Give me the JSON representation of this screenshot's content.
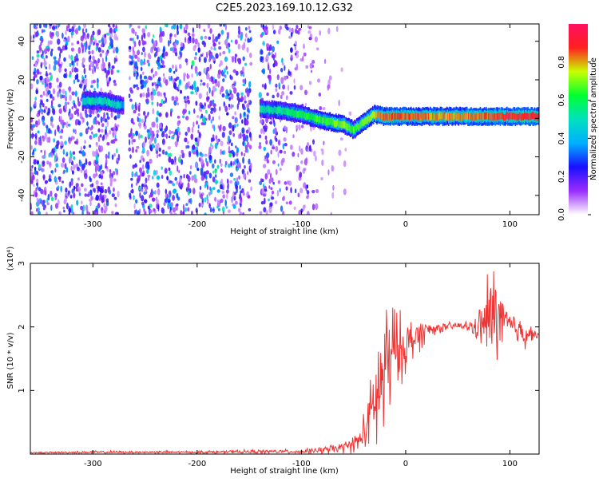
{
  "figure_title": "C2E5.2023.169.10.12.G32",
  "chart_data": [
    {
      "type": "heatmap",
      "xlabel": "Height of straight line (km)",
      "ylabel": "Frequency (Hz)",
      "xlim": [
        -360,
        128
      ],
      "ylim": [
        -50,
        49
      ],
      "xticks": [
        -300,
        -200,
        -100,
        0,
        100
      ],
      "xtick_labels": [
        "-300",
        "-200",
        "-100",
        "0",
        "100"
      ],
      "yticks": [
        -40,
        -20,
        0,
        20,
        40
      ],
      "ytick_labels": [
        "-40",
        "-20",
        "0",
        "20",
        "40"
      ],
      "grid": false,
      "colorbar": {
        "label": "Normalized spectral amplitude",
        "range": [
          0.0,
          1.0
        ],
        "ticks": [
          0.0,
          0.2,
          0.4,
          0.6,
          0.8
        ],
        "tick_labels": [
          "0.0",
          "0.2",
          "0.4",
          "0.6",
          "0.8"
        ],
        "colors": [
          "#ffffff",
          "#9a2cff",
          "#1a10ff",
          "#00b0ff",
          "#00e0c0",
          "#00ff30",
          "#c8ff00",
          "#ff2020",
          "#ff1060"
        ]
      },
      "noise": {
        "x_range": [
          -360,
          -70
        ],
        "level": 0.18,
        "gap_x": [
          [
            -275,
            -265
          ],
          [
            -148,
            -140
          ]
        ]
      },
      "trace": {
        "name_visible": false,
        "x": [
          -310,
          -290,
          -275,
          -265,
          -140,
          -120,
          -100,
          -80,
          -60,
          -50,
          -40,
          -30,
          -20,
          0,
          40,
          80,
          110,
          128
        ],
        "frequency": [
          9,
          9,
          7,
          6,
          5,
          4,
          2,
          -1,
          -3,
          -6,
          -2,
          2,
          1,
          1,
          1,
          1,
          1,
          1
        ],
        "amplitude": [
          0.5,
          0.5,
          0.5,
          0.0,
          0.5,
          0.55,
          0.6,
          0.65,
          0.7,
          0.65,
          0.7,
          0.75,
          0.85,
          0.85,
          0.8,
          0.85,
          0.9,
          0.9
        ]
      }
    },
    {
      "type": "line",
      "xlabel": "Height of straight line (km)",
      "ylabel": "SNR (10 * v/v)",
      "y_multiplier": "(x10⁴)",
      "xlim": [
        -360,
        128
      ],
      "ylim": [
        0,
        3
      ],
      "xticks": [
        -300,
        -200,
        -100,
        0,
        100
      ],
      "xtick_labels": [
        "-300",
        "-200",
        "-100",
        "0",
        "100"
      ],
      "yticks": [
        1,
        2,
        3
      ],
      "ytick_labels": [
        "1",
        "2",
        "3"
      ],
      "grid": false,
      "series": [
        {
          "color": "#ee3333",
          "x": [
            -360,
            -300,
            -200,
            -130,
            -100,
            -80,
            -60,
            -45,
            -40,
            -35,
            -30,
            -25,
            -20,
            -15,
            -10,
            -5,
            0,
            10,
            20,
            30,
            40,
            50,
            60,
            70,
            75,
            80,
            85,
            90,
            95,
            100,
            105,
            110,
            115,
            120,
            128
          ],
          "y": [
            0.02,
            0.03,
            0.03,
            0.04,
            0.04,
            0.06,
            0.1,
            0.2,
            0.35,
            0.5,
            0.8,
            1.0,
            1.3,
            1.5,
            1.6,
            1.65,
            1.7,
            1.85,
            1.95,
            1.98,
            2.0,
            2.02,
            2.0,
            2.0,
            2.05,
            2.1,
            2.2,
            2.15,
            2.05,
            2.0,
            1.98,
            1.95,
            1.92,
            1.9,
            1.87
          ],
          "spread": [
            0.01,
            0.02,
            0.02,
            0.03,
            0.03,
            0.05,
            0.08,
            0.15,
            0.3,
            0.45,
            0.75,
            1.0,
            1.1,
            0.9,
            0.7,
            0.5,
            0.4,
            0.3,
            0.15,
            0.08,
            0.06,
            0.06,
            0.08,
            0.2,
            0.5,
            0.8,
            0.7,
            0.55,
            0.4,
            0.25,
            0.2,
            0.25,
            0.3,
            0.1,
            0.05
          ]
        }
      ]
    }
  ]
}
